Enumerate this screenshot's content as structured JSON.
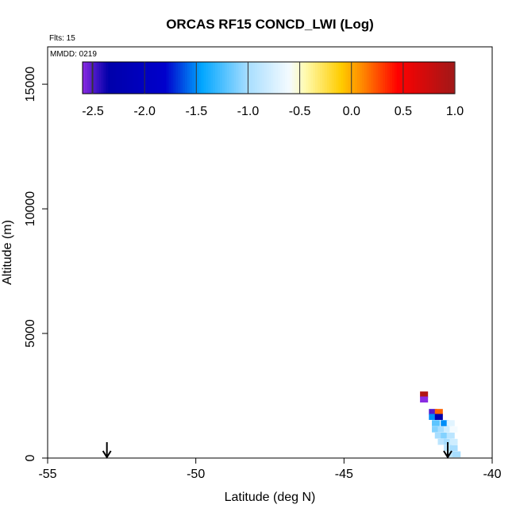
{
  "chart_data": {
    "type": "heatmap",
    "title": "ORCAS RF15 CONCD_LWI (Log)",
    "flights_label": "Flts: 15",
    "date_label": "MMDD: 0219",
    "xlabel": "Latitude (deg N)",
    "ylabel": "Altitude (m)",
    "xlim": [
      -55,
      -40
    ],
    "ylim": [
      0,
      16500
    ],
    "x_ticks": [
      -55,
      -50,
      -45,
      -40
    ],
    "y_ticks": [
      0,
      5000,
      10000,
      15000
    ],
    "colorbar": {
      "range": [
        -2.6,
        1.0
      ],
      "ticks": [
        "-2.5",
        "-2.0",
        "-1.5",
        "-1.0",
        "-0.5",
        "0.0",
        "0.5",
        "1.0"
      ],
      "tick_values": [
        -2.5,
        -2.0,
        -1.5,
        -1.0,
        -0.5,
        0.0,
        0.5,
        1.0
      ],
      "stops": [
        {
          "v": -2.6,
          "color": "#8a2be2"
        },
        {
          "v": -2.35,
          "color": "#0000aa"
        },
        {
          "v": -1.8,
          "color": "#0000cc"
        },
        {
          "v": -1.45,
          "color": "#00a6ff"
        },
        {
          "v": -1.0,
          "color": "#a8deff"
        },
        {
          "v": -0.6,
          "color": "#f4fbff"
        },
        {
          "v": -0.45,
          "color": "#fffbb0"
        },
        {
          "v": -0.1,
          "color": "#ffcc00"
        },
        {
          "v": 0.1,
          "color": "#ff8a00"
        },
        {
          "v": 0.45,
          "color": "#ff0000"
        },
        {
          "v": 1.0,
          "color": "#a01818"
        }
      ]
    },
    "markers": [
      {
        "lat": -53.0,
        "symbol": "down-arrow"
      },
      {
        "lat": -41.5,
        "symbol": "down-arrow"
      }
    ],
    "cells": [
      {
        "lat": -42.3,
        "alt": 2550,
        "value": 0.9
      },
      {
        "lat": -42.3,
        "alt": 2350,
        "value": -2.6
      },
      {
        "lat": -42.0,
        "alt": 1850,
        "value": -2.5
      },
      {
        "lat": -41.8,
        "alt": 1850,
        "value": 0.2
      },
      {
        "lat": -42.0,
        "alt": 1650,
        "value": -1.5
      },
      {
        "lat": -41.8,
        "alt": 1650,
        "value": -2.3
      },
      {
        "lat": -41.9,
        "alt": 1400,
        "value": -1.2
      },
      {
        "lat": -41.6,
        "alt": 1400,
        "value": -1.5
      },
      {
        "lat": -41.4,
        "alt": 1400,
        "value": -0.7
      },
      {
        "lat": -41.9,
        "alt": 1150,
        "value": -1.1
      },
      {
        "lat": -41.7,
        "alt": 1150,
        "value": -1.0
      },
      {
        "lat": -41.5,
        "alt": 1150,
        "value": -0.8
      },
      {
        "lat": -41.3,
        "alt": 1150,
        "value": -0.6
      },
      {
        "lat": -41.8,
        "alt": 900,
        "value": -1.0
      },
      {
        "lat": -41.6,
        "alt": 900,
        "value": -1.1
      },
      {
        "lat": -41.4,
        "alt": 900,
        "value": -0.9
      },
      {
        "lat": -41.7,
        "alt": 650,
        "value": -0.9
      },
      {
        "lat": -41.5,
        "alt": 650,
        "value": -1.0
      },
      {
        "lat": -41.3,
        "alt": 650,
        "value": -0.8
      },
      {
        "lat": -41.5,
        "alt": 400,
        "value": -0.9
      },
      {
        "lat": -41.3,
        "alt": 400,
        "value": -1.0
      },
      {
        "lat": -41.4,
        "alt": 150,
        "value": -0.9
      },
      {
        "lat": -41.2,
        "alt": 150,
        "value": -1.0
      }
    ]
  }
}
